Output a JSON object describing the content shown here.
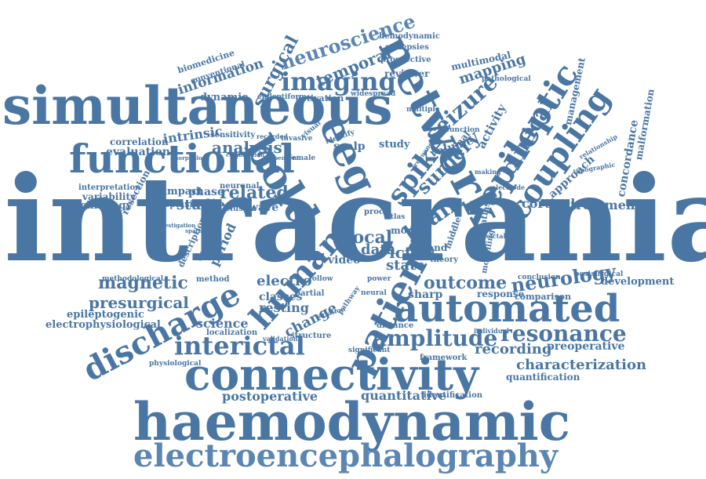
{
  "colors": {
    "primary": "#4a76a3",
    "secondary": "#5b86b3"
  },
  "words": [
    "intracranial",
    "simultaneous",
    "functional",
    "connectivity",
    "haemodynamic",
    "electroencephalography",
    "automated",
    "network",
    "bold",
    "eeg",
    "discharge",
    "human",
    "patient",
    "epileptic",
    "coupling",
    "spike",
    "seizure",
    "brain",
    "surgery",
    "clinical",
    "imaging",
    "neuroscience",
    "temporal",
    "surgical",
    "interictal",
    "amplitude",
    "resonance",
    "magnetic",
    "presurgical",
    "outcome",
    "neurology",
    "characterization",
    "postoperative",
    "quantitative",
    "recording",
    "preoperative",
    "quantification",
    "cortical",
    "treatment",
    "analysis",
    "related",
    "studies",
    "phase",
    "impact",
    "focal",
    "ictal",
    "state",
    "data",
    "video",
    "electro",
    "classes",
    "resting",
    "change",
    "science",
    "epileptogenic",
    "electrophysiological",
    "concordance",
    "malformation",
    "management",
    "approach",
    "development",
    "sharp",
    "response",
    "comparison",
    "conclusion",
    "postsurgical",
    "pathological",
    "mapping",
    "multimodal",
    "hemodynamic",
    "epilepsies",
    "prospective",
    "reviewer",
    "widespread",
    "activation",
    "epileptiform",
    "information",
    "conventional",
    "biomedicine",
    "dynamic",
    "correlation",
    "evaluation",
    "intrinsic",
    "sensitivity",
    "invasive",
    "visual",
    "scalp",
    "study",
    "interpretation",
    "variability",
    "technology",
    "resection",
    "dysplasia",
    "neuronal",
    "wave",
    "cluster",
    "description",
    "decision",
    "period",
    "method",
    "methodological",
    "localization",
    "validation",
    "structure",
    "physiological",
    "distance",
    "significant",
    "framework",
    "identification",
    "band",
    "middle",
    "theory",
    "extra",
    "atlas",
    "model",
    "proc",
    "ien_atlas",
    "modelling",
    "volume",
    "signal",
    "activity",
    "function",
    "multiple",
    "female",
    "electrode",
    "partial",
    "follow",
    "neural",
    "power",
    "pathway",
    "variation",
    "individual",
    "making",
    "relationship",
    "topographic",
    "frequency",
    "peictal",
    "identify",
    "recorded",
    "dependent",
    "spatial",
    "investigation",
    "morphology",
    "combination"
  ]
}
